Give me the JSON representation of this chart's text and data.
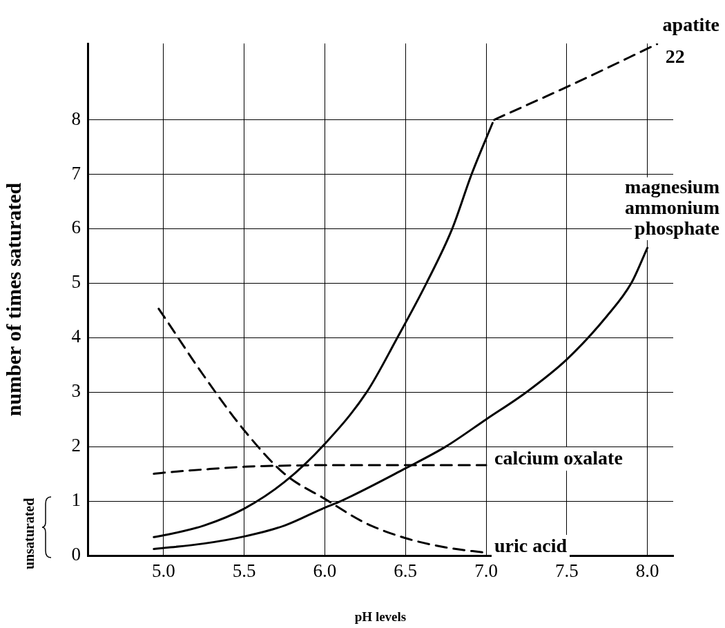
{
  "chart_data": {
    "type": "line",
    "xlabel": "pH levels",
    "ylabel": "number of times saturated",
    "xlim": [
      4.53,
      8.16
    ],
    "ylim": [
      0,
      9.4
    ],
    "xticks": [
      {
        "value": 5,
        "label": "5.0"
      },
      {
        "value": 5.5,
        "label": "5.5"
      },
      {
        "value": 6,
        "label": "6.0"
      },
      {
        "value": 6.5,
        "label": "6.5"
      },
      {
        "value": 7,
        "label": "7.0"
      },
      {
        "value": 7.5,
        "label": "7.5"
      },
      {
        "value": 8,
        "label": "8.0"
      }
    ],
    "yticks": [
      0,
      1,
      2,
      3,
      4,
      5,
      6,
      7,
      8
    ],
    "grid": true,
    "legend": false,
    "marker": "none",
    "series": [
      {
        "color": "#000000",
        "line_style": "solid",
        "x": [
          4.94,
          5.0,
          5.25,
          5.5,
          5.75,
          6.0,
          6.26,
          6.45,
          6.63,
          6.79,
          6.91,
          7.04
        ],
        "values": [
          0.34,
          0.37,
          0.55,
          0.86,
          1.35,
          2.05,
          3.0,
          4.0,
          5.0,
          6.0,
          7.0,
          7.94
        ]
      },
      {
        "name": "apatite",
        "color": "#000000",
        "line_style": "dashed",
        "x": [
          7.05,
          7.55,
          8.06
        ],
        "values": [
          8.0,
          8.67,
          9.39
        ]
      },
      {
        "name": "magnesium ammonium phosphate",
        "color": "#000000",
        "line_style": "solid",
        "x": [
          4.94,
          5.25,
          5.5,
          5.75,
          6.0,
          6.1,
          6.5,
          6.75,
          7.0,
          7.25,
          7.5,
          7.75,
          7.9,
          8.0
        ],
        "values": [
          0.12,
          0.22,
          0.35,
          0.55,
          0.88,
          1.0,
          1.6,
          2.0,
          2.5,
          3.0,
          3.6,
          4.4,
          5.0,
          5.65
        ]
      },
      {
        "name": "calcium oxalate",
        "color": "#000000",
        "line_style": "dashed",
        "x": [
          4.94,
          5.0,
          5.25,
          5.5,
          5.75,
          6.0,
          6.5,
          7.0
        ],
        "values": [
          1.5,
          1.52,
          1.58,
          1.63,
          1.65,
          1.66,
          1.66,
          1.66
        ]
      },
      {
        "name": "uric acid",
        "color": "#000000",
        "line_style": "dashed",
        "x": [
          4.97,
          5.0,
          5.25,
          5.5,
          5.75,
          6.0,
          6.25,
          6.5,
          6.75,
          7.0
        ],
        "values": [
          4.53,
          4.4,
          3.3,
          2.3,
          1.5,
          1.04,
          0.6,
          0.32,
          0.15,
          0.05
        ]
      }
    ],
    "annotations": [
      {
        "text": "22",
        "x": 8.06,
        "y": 9.39
      },
      "unsaturated"
    ]
  }
}
